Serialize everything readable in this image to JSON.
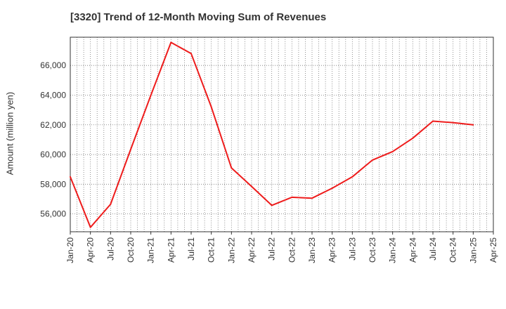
{
  "chart_data": {
    "type": "line",
    "title": "[3320]  Trend of 12-Month Moving Sum of Revenues",
    "xlabel": "",
    "ylabel": "Amount (million yen)",
    "ylim": [
      54800,
      67900
    ],
    "yticks": [
      56000,
      58000,
      60000,
      62000,
      64000,
      66000
    ],
    "ytick_labels": [
      "56,000",
      "58,000",
      "60,000",
      "62,000",
      "64,000",
      "66,000"
    ],
    "xtick_labels": [
      "Jan-20",
      "Apr-20",
      "Jul-20",
      "Oct-20",
      "Jan-21",
      "Apr-21",
      "Jul-21",
      "Oct-21",
      "Jan-22",
      "Apr-22",
      "Jul-22",
      "Oct-22",
      "Jan-23",
      "Apr-23",
      "Jul-23",
      "Oct-23",
      "Jan-24",
      "Apr-24",
      "Jul-24",
      "Oct-24",
      "Jan-25",
      "Apr-25"
    ],
    "x": [
      "Jan-20",
      "Apr-20",
      "Jul-20",
      "Oct-20",
      "Jan-21",
      "Apr-21",
      "Jul-21",
      "Oct-21",
      "Jan-22",
      "Apr-22",
      "Jul-22",
      "Oct-22",
      "Jan-23",
      "Apr-23",
      "Jul-23",
      "Oct-23",
      "Jan-24",
      "Apr-24",
      "Jul-24",
      "Oct-24",
      "Jan-25"
    ],
    "series": [
      {
        "values": [
          58500,
          55100,
          56650,
          60350,
          64000,
          67550,
          66800,
          63200,
          59100,
          57850,
          56580,
          57120,
          57060,
          57730,
          58500,
          59630,
          60200,
          61100,
          62250,
          62150,
          62000
        ]
      }
    ],
    "grid": true,
    "line_color": "#ee1c1c"
  }
}
